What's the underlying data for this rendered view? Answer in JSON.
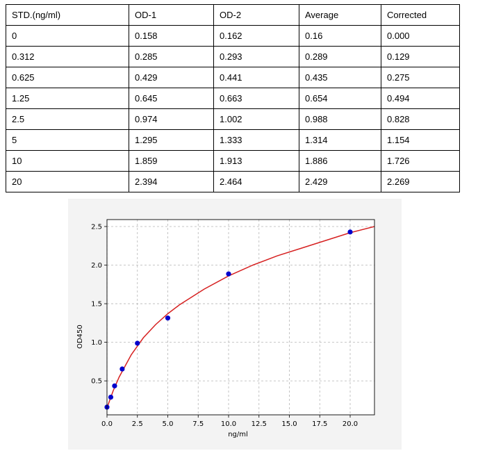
{
  "table": {
    "header": [
      "STD.(ng/ml)",
      "OD-1",
      "OD-2",
      "Average",
      "Corrected"
    ],
    "rows": [
      [
        "0",
        "0.158",
        "0.162",
        "0.16",
        "0.000"
      ],
      [
        "0.312",
        "0.285",
        "0.293",
        "0.289",
        "0.129"
      ],
      [
        "0.625",
        "0.429",
        "0.441",
        "0.435",
        "0.275"
      ],
      [
        "1.25",
        "0.645",
        "0.663",
        "0.654",
        "0.494"
      ],
      [
        "2.5",
        "0.974",
        "1.002",
        "0.988",
        "0.828"
      ],
      [
        "5",
        "1.295",
        "1.333",
        "1.314",
        "1.154"
      ],
      [
        "10",
        "1.859",
        "1.913",
        "1.886",
        "1.726"
      ],
      [
        "20",
        "2.394",
        "2.464",
        "2.429",
        "2.269"
      ]
    ]
  },
  "chart_data": {
    "type": "scatter",
    "xlabel": "ng/ml",
    "ylabel": "OD450",
    "xlim": [
      0,
      22
    ],
    "ylim": [
      0.06,
      2.59
    ],
    "xticks": [
      "0.0",
      "2.5",
      "5.0",
      "7.5",
      "10.0",
      "12.5",
      "15.0",
      "17.5",
      "20.0"
    ],
    "yticks": [
      "0.5",
      "1.0",
      "1.5",
      "2.0",
      "2.5"
    ],
    "grid": true,
    "series": [
      {
        "kind": "points",
        "color": "#0000cc",
        "x": [
          0,
          0.312,
          0.625,
          1.25,
          2.5,
          5,
          10,
          20
        ],
        "y": [
          0.16,
          0.289,
          0.435,
          0.654,
          0.988,
          1.314,
          1.886,
          2.429
        ]
      },
      {
        "kind": "fitted-curve",
        "color": "#d62020",
        "x": [
          0,
          0.5,
          1,
          2,
          3,
          4,
          5,
          6,
          8,
          10,
          12,
          14,
          16,
          18,
          20,
          22
        ],
        "y": [
          0.15,
          0.37,
          0.55,
          0.84,
          1.06,
          1.23,
          1.37,
          1.49,
          1.69,
          1.86,
          2.0,
          2.12,
          2.22,
          2.32,
          2.42,
          2.5
        ]
      }
    ]
  }
}
